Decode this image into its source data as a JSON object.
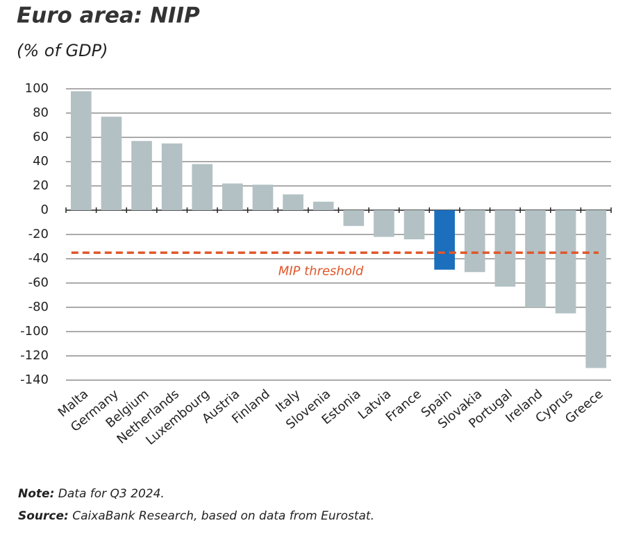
{
  "chart_data": {
    "type": "bar",
    "title": "Euro area: NIIP",
    "subtitle": "(% of GDP)",
    "categories": [
      "Malta",
      "Germany",
      "Belgium",
      "Netherlands",
      "Luxembourg",
      "Austria",
      "Finland",
      "Italy",
      "Slovenia",
      "Estonia",
      "Latvia",
      "France",
      "Spain",
      "Slovakia",
      "Portugal",
      "Ireland",
      "Cyprus",
      "Greece"
    ],
    "values": [
      98,
      77,
      57,
      55,
      38,
      22,
      21,
      13,
      7,
      -13,
      -22,
      -24,
      -49,
      -51,
      -63,
      -80,
      -85,
      -130
    ],
    "colors": [
      "#b3c1c4",
      "#b3c1c4",
      "#b3c1c4",
      "#b3c1c4",
      "#b3c1c4",
      "#b3c1c4",
      "#b3c1c4",
      "#b3c1c4",
      "#b3c1c4",
      "#b3c1c4",
      "#b3c1c4",
      "#b3c1c4",
      "#1b6fbd",
      "#b3c1c4",
      "#b3c1c4",
      "#b3c1c4",
      "#b3c1c4",
      "#b3c1c4"
    ],
    "ylim": [
      -140,
      100
    ],
    "yticks": [
      100,
      80,
      60,
      40,
      20,
      0,
      -20,
      -40,
      -60,
      -80,
      -100,
      -120,
      -140
    ],
    "grid": true,
    "threshold": {
      "value": -35,
      "label": "MIP threshold",
      "color": "#e0572b"
    },
    "notes": [
      {
        "label": "Note:",
        "text": "Data for Q3 2024."
      },
      {
        "label": "Source:",
        "text": "CaixaBank Research, based on data from Eurostat."
      }
    ]
  }
}
